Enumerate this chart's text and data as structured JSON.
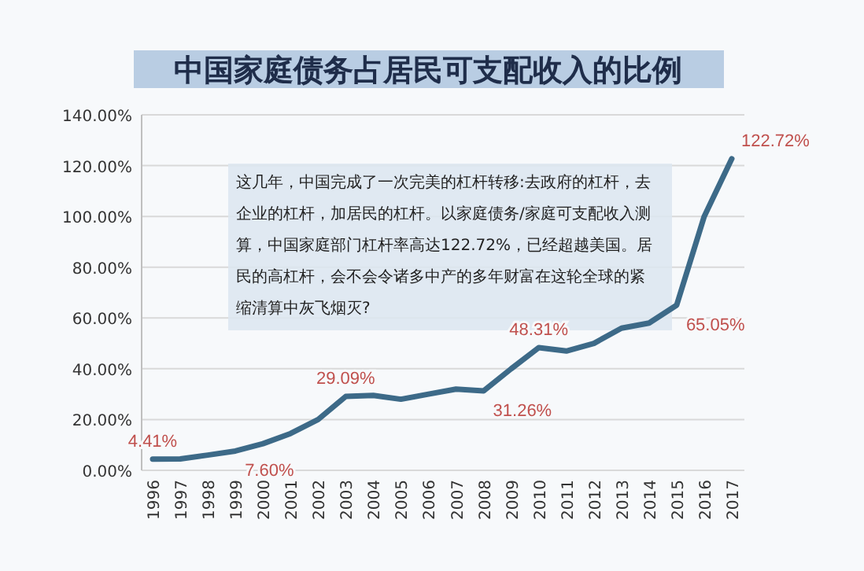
{
  "chart_data": {
    "type": "line",
    "title": "中国家庭债务占居民可支配收入的比例",
    "categories": [
      "1996",
      "1997",
      "1998",
      "1999",
      "2000",
      "2001",
      "2002",
      "2003",
      "2004",
      "2005",
      "2006",
      "2007",
      "2008",
      "2009",
      "2010",
      "2011",
      "2012",
      "2013",
      "2014",
      "2015",
      "2016",
      "2017"
    ],
    "series": [
      {
        "color": "#3d6a88",
        "values": [
          4.41,
          4.5,
          6,
          7.6,
          10.5,
          14.5,
          20,
          29.09,
          29.5,
          28,
          30,
          32,
          31.26,
          40,
          48.31,
          47,
          50,
          56,
          58,
          65.05,
          100,
          122.72
        ],
        "value_labels": [
          "4.41%",
          null,
          null,
          "7.60%",
          null,
          null,
          null,
          "29.09%",
          null,
          null,
          null,
          null,
          "31.26%",
          null,
          "48.31%",
          null,
          null,
          null,
          null,
          "65.05%",
          null,
          "122.72%"
        ]
      }
    ],
    "ylim": [
      0,
      140
    ],
    "yticks": [
      {
        "value": 0,
        "label": "0.00%"
      },
      {
        "value": 20,
        "label": "20.00%"
      },
      {
        "value": 40,
        "label": "40.00%"
      },
      {
        "value": 60,
        "label": "60.00%"
      },
      {
        "value": 80,
        "label": "80.00%"
      },
      {
        "value": 100,
        "label": "100.00%"
      },
      {
        "value": 120,
        "label": "120.00%"
      },
      {
        "value": 140,
        "label": "140.00%"
      }
    ],
    "grid": "y",
    "marker": "none",
    "annotations": [
      "这几年，中国完成了一次完美的杠杆转移:去政府的杠杆，去企业的杠杆，加居民的杠杆。以家庭债务/家庭可支配收入测算，中国家庭部门杠杆率高达122.72%，已经超越美国。居民的高杠杆，会不会令诸多中产的多年财富在这轮全球的紧缩清算中灰飞烟灭?"
    ]
  }
}
